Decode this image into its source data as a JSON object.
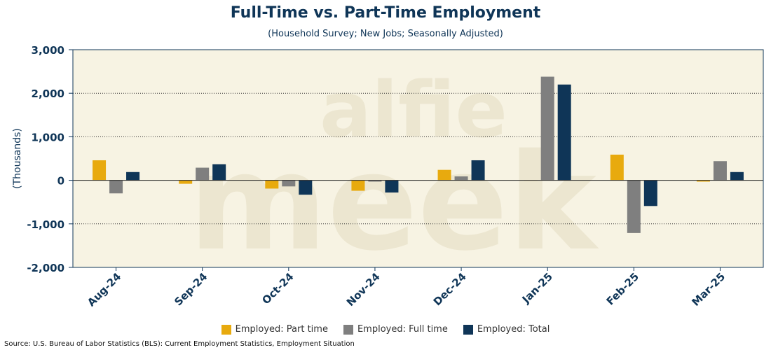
{
  "title": "Full-Time vs. Part-Time Employment",
  "subtitle": "(Household Survey; New Jobs; Seasonally Adjusted)",
  "source": "Source: U.S. Bureau of Labor Statistics (BLS): Current Employment Statistics, Employment Situation",
  "watermark": "alfie meek",
  "colors": {
    "plot_background": "#f7f3e3",
    "axis": "#0f3557",
    "part_time": "#e8aa0e",
    "full_time": "#7f7f7f",
    "total": "#0f3557"
  },
  "chart_data": {
    "type": "bar",
    "title": "Full-Time vs. Part-Time Employment",
    "subtitle": "(Household Survey; New Jobs; Seasonally Adjusted)",
    "xlabel": "",
    "ylabel": "(Thousands)",
    "ylim": [
      -2000,
      3000
    ],
    "yticks": [
      -2000,
      -1000,
      0,
      1000,
      2000,
      3000
    ],
    "ytick_labels": [
      "-2,000",
      "-1,000",
      "0",
      "1,000",
      "2,000",
      "3,000"
    ],
    "grid": true,
    "legend_position": "bottom",
    "categories": [
      "Aug-24",
      "Sep-24",
      "Oct-24",
      "Nov-24",
      "Dec-24",
      "Jan-25",
      "Feb-25",
      "Mar-25"
    ],
    "series": [
      {
        "name": "Employed: Part time",
        "color": "#e8aa0e",
        "values": [
          460,
          -80,
          -190,
          -240,
          240,
          0,
          590,
          -30
        ]
      },
      {
        "name": "Employed: Full time",
        "color": "#7f7f7f",
        "values": [
          -300,
          290,
          -140,
          -30,
          90,
          2380,
          -1210,
          440
        ]
      },
      {
        "name": "Employed: Total",
        "color": "#0f3557",
        "values": [
          190,
          370,
          -330,
          -280,
          460,
          2200,
          -590,
          190
        ]
      }
    ]
  }
}
